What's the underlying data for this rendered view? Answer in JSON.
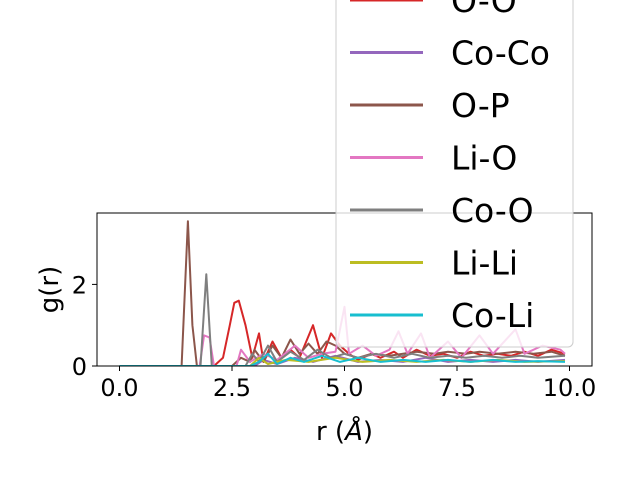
{
  "chart_data": {
    "type": "line",
    "title": "",
    "xlabel": "r (",
    "xlabel_unit": "Å",
    "xlabel_close": ")",
    "ylabel": "g(r)",
    "xlim": [
      -0.5,
      10.5
    ],
    "ylim": [
      0,
      3.75
    ],
    "xticks": [
      0,
      2.5,
      5,
      7.5,
      10
    ],
    "xtick_labels": [
      "0.0",
      "2.5",
      "5.0",
      "7.5",
      "10.0"
    ],
    "yticks": [
      0,
      2
    ],
    "ytick_labels": [
      "0",
      "2"
    ],
    "grid": false,
    "legend_position": "upper-right (overflowing above plot)",
    "series": [
      {
        "name": "O-O",
        "color": "#d62728",
        "points": [
          [
            0,
            0
          ],
          [
            2.1,
            0
          ],
          [
            2.3,
            0.2
          ],
          [
            2.45,
            1.0
          ],
          [
            2.55,
            1.55
          ],
          [
            2.65,
            1.6
          ],
          [
            2.8,
            1.0
          ],
          [
            2.95,
            0.2
          ],
          [
            3.1,
            0.8
          ],
          [
            3.2,
            0.1
          ],
          [
            3.4,
            0.6
          ],
          [
            3.6,
            0.2
          ],
          [
            3.8,
            0.4
          ],
          [
            4.0,
            0.2
          ],
          [
            4.3,
            1.0
          ],
          [
            4.5,
            0.2
          ],
          [
            4.7,
            0.8
          ],
          [
            4.9,
            0.5
          ],
          [
            5.1,
            0.3
          ],
          [
            5.3,
            0.15
          ],
          [
            5.6,
            0.3
          ],
          [
            5.8,
            0.2
          ],
          [
            6.1,
            0.35
          ],
          [
            6.3,
            0.2
          ],
          [
            6.6,
            0.4
          ],
          [
            6.9,
            0.25
          ],
          [
            7.2,
            0.3
          ],
          [
            7.5,
            0.2
          ],
          [
            7.8,
            0.35
          ],
          [
            8.1,
            0.25
          ],
          [
            8.4,
            0.3
          ],
          [
            8.7,
            0.25
          ],
          [
            9.0,
            0.35
          ],
          [
            9.3,
            0.25
          ],
          [
            9.6,
            0.4
          ],
          [
            9.9,
            0.3
          ]
        ]
      },
      {
        "name": "Co-Co",
        "color": "#9467bd",
        "points": [
          [
            0,
            0
          ],
          [
            3.0,
            0
          ],
          [
            3.2,
            0.15
          ],
          [
            3.5,
            0.05
          ],
          [
            3.9,
            0.2
          ],
          [
            4.3,
            0.1
          ],
          [
            4.8,
            0.25
          ],
          [
            5.3,
            0.1
          ],
          [
            5.8,
            0.15
          ],
          [
            6.3,
            0.1
          ],
          [
            6.8,
            0.2
          ],
          [
            7.3,
            0.1
          ],
          [
            7.8,
            0.15
          ],
          [
            8.3,
            0.1
          ],
          [
            8.8,
            0.15
          ],
          [
            9.3,
            0.1
          ],
          [
            9.9,
            0.15
          ]
        ]
      },
      {
        "name": "O-P",
        "color": "#8c564b",
        "points": [
          [
            0,
            0
          ],
          [
            1.38,
            0
          ],
          [
            1.52,
            3.55
          ],
          [
            1.62,
            1.0
          ],
          [
            1.72,
            0
          ],
          [
            2.5,
            0
          ],
          [
            2.7,
            0.2
          ],
          [
            2.9,
            0.1
          ],
          [
            3.0,
            0.4
          ],
          [
            3.2,
            0.1
          ],
          [
            3.4,
            0.5
          ],
          [
            3.6,
            0.2
          ],
          [
            3.8,
            0.65
          ],
          [
            4.0,
            0.3
          ],
          [
            4.2,
            0.55
          ],
          [
            4.4,
            0.3
          ],
          [
            4.6,
            0.6
          ],
          [
            4.8,
            0.5
          ],
          [
            5.0,
            0.3
          ],
          [
            5.3,
            0.2
          ],
          [
            5.6,
            0.3
          ],
          [
            6.0,
            0.25
          ],
          [
            6.3,
            0.3
          ],
          [
            6.6,
            0.35
          ],
          [
            7.0,
            0.3
          ],
          [
            7.3,
            0.35
          ],
          [
            7.7,
            0.3
          ],
          [
            8.0,
            0.35
          ],
          [
            8.4,
            0.3
          ],
          [
            8.8,
            0.35
          ],
          [
            9.2,
            0.3
          ],
          [
            9.6,
            0.35
          ],
          [
            9.9,
            0.25
          ]
        ]
      },
      {
        "name": "Li-O",
        "color": "#e377c2",
        "points": [
          [
            0,
            0
          ],
          [
            1.78,
            0
          ],
          [
            1.88,
            0.75
          ],
          [
            2.0,
            0.7
          ],
          [
            2.1,
            0
          ],
          [
            2.6,
            0
          ],
          [
            2.7,
            0.4
          ],
          [
            2.9,
            0.1
          ],
          [
            3.2,
            0.3
          ],
          [
            3.5,
            0.15
          ],
          [
            3.9,
            0.5
          ],
          [
            4.2,
            0.2
          ],
          [
            4.5,
            0.3
          ],
          [
            4.8,
            0.35
          ],
          [
            5.0,
            1.45
          ],
          [
            5.1,
            0.3
          ],
          [
            5.4,
            0.5
          ],
          [
            5.7,
            0.25
          ],
          [
            6.0,
            0.4
          ],
          [
            6.2,
            0.85
          ],
          [
            6.4,
            0.3
          ],
          [
            6.7,
            0.8
          ],
          [
            6.9,
            0.2
          ],
          [
            7.3,
            0.6
          ],
          [
            7.6,
            0.2
          ],
          [
            8.0,
            0.75
          ],
          [
            8.3,
            0.3
          ],
          [
            8.8,
            0.9
          ],
          [
            9.0,
            0.3
          ],
          [
            9.4,
            0.5
          ],
          [
            9.8,
            0.4
          ],
          [
            9.9,
            0.3
          ]
        ]
      },
      {
        "name": "Co-O",
        "color": "#7f7f7f",
        "points": [
          [
            0,
            0
          ],
          [
            1.8,
            0
          ],
          [
            1.93,
            2.25
          ],
          [
            2.05,
            0
          ],
          [
            2.8,
            0
          ],
          [
            2.95,
            0.3
          ],
          [
            3.1,
            0.1
          ],
          [
            3.3,
            0.5
          ],
          [
            3.5,
            0.1
          ],
          [
            3.8,
            0.35
          ],
          [
            4.1,
            0.15
          ],
          [
            4.4,
            0.4
          ],
          [
            4.7,
            0.2
          ],
          [
            5.0,
            0.3
          ],
          [
            5.3,
            0.2
          ],
          [
            5.7,
            0.3
          ],
          [
            6.1,
            0.2
          ],
          [
            6.5,
            0.3
          ],
          [
            6.9,
            0.2
          ],
          [
            7.3,
            0.25
          ],
          [
            7.7,
            0.2
          ],
          [
            8.1,
            0.25
          ],
          [
            8.5,
            0.2
          ],
          [
            8.9,
            0.25
          ],
          [
            9.3,
            0.2
          ],
          [
            9.9,
            0.25
          ]
        ]
      },
      {
        "name": "Li-Li",
        "color": "#bcbd22",
        "points": [
          [
            0,
            0
          ],
          [
            2.9,
            0
          ],
          [
            3.1,
            0.2
          ],
          [
            3.3,
            0.05
          ],
          [
            3.7,
            0.15
          ],
          [
            4.2,
            0.1
          ],
          [
            4.8,
            0.2
          ],
          [
            5.4,
            0.1
          ],
          [
            6.0,
            0.15
          ],
          [
            6.6,
            0.1
          ],
          [
            7.2,
            0.15
          ],
          [
            7.8,
            0.1
          ],
          [
            8.4,
            0.15
          ],
          [
            9.0,
            0.1
          ],
          [
            9.9,
            0.12
          ]
        ]
      },
      {
        "name": "Co-Li",
        "color": "#17becf",
        "points": [
          [
            0,
            0
          ],
          [
            2.9,
            0
          ],
          [
            3.1,
            0.1
          ],
          [
            3.3,
            0.3
          ],
          [
            3.5,
            0.05
          ],
          [
            3.8,
            0.2
          ],
          [
            4.1,
            0.1
          ],
          [
            4.5,
            0.25
          ],
          [
            4.9,
            0.1
          ],
          [
            5.3,
            0.2
          ],
          [
            5.8,
            0.1
          ],
          [
            6.3,
            0.15
          ],
          [
            6.8,
            0.1
          ],
          [
            7.3,
            0.15
          ],
          [
            7.8,
            0.1
          ],
          [
            8.3,
            0.15
          ],
          [
            8.8,
            0.1
          ],
          [
            9.3,
            0.12
          ],
          [
            9.9,
            0.1
          ]
        ]
      }
    ]
  }
}
